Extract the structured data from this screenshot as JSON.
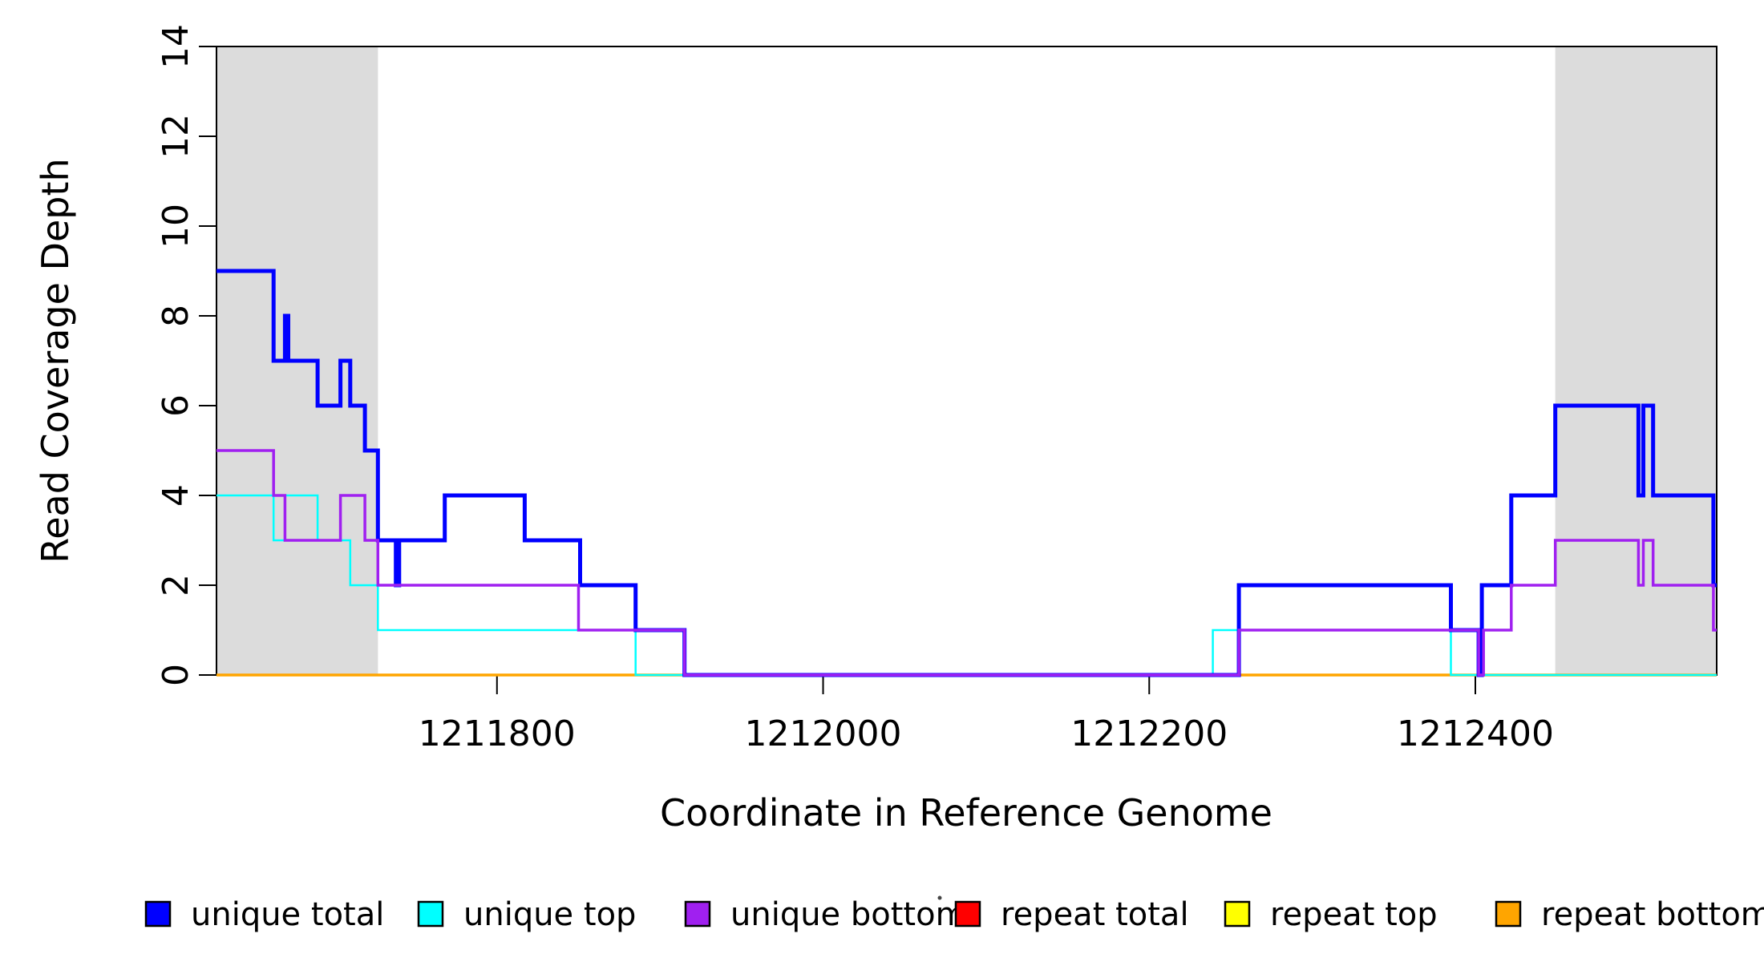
{
  "chart_data": {
    "type": "line",
    "subtype": "step-coverage",
    "title": "",
    "xlabel": "Coordinate in Reference Genome",
    "ylabel": "Read Coverage Depth",
    "x_range": [
      1211628,
      1212548
    ],
    "ylim": [
      0,
      14
    ],
    "grid": false,
    "legend_position": "bottom",
    "x_ticks": [
      {
        "value": 1211800,
        "label": "1211800"
      },
      {
        "value": 1212000,
        "label": "1212000"
      },
      {
        "value": 1212200,
        "label": "1212200"
      },
      {
        "value": 1212400,
        "label": "1212400"
      }
    ],
    "y_ticks": [
      {
        "value": 0,
        "label": "0"
      },
      {
        "value": 2,
        "label": "2"
      },
      {
        "value": 4,
        "label": "4"
      },
      {
        "value": 6,
        "label": "6"
      },
      {
        "value": 8,
        "label": "8"
      },
      {
        "value": 10,
        "label": "10"
      },
      {
        "value": 12,
        "label": "12"
      },
      {
        "value": 14,
        "label": "14"
      }
    ],
    "shaded_regions": [
      {
        "name": "repeat-region-left",
        "x_start": 1211628,
        "x_end": 1211727,
        "color": "#DCDCDC"
      },
      {
        "name": "repeat-region-right",
        "x_start": 1212449,
        "x_end": 1212548,
        "color": "#DCDCDC"
      }
    ],
    "series": [
      {
        "name": "repeat total",
        "color": "#FF0000",
        "width": 3,
        "points": [
          [
            1211628,
            0
          ],
          [
            1212548,
            0
          ]
        ]
      },
      {
        "name": "repeat top",
        "color": "#FFFF00",
        "width": 3,
        "points": [
          [
            1211628,
            0
          ],
          [
            1212548,
            0
          ]
        ]
      },
      {
        "name": "repeat bottom",
        "color": "#FFA500",
        "width": 3.5,
        "points": [
          [
            1211628,
            0
          ],
          [
            1212548,
            0
          ]
        ]
      },
      {
        "name": "unique top",
        "color": "#00FFFF",
        "width": 2.5,
        "points": [
          [
            1211628,
            4
          ],
          [
            1211663,
            3
          ],
          [
            1211670,
            4
          ],
          [
            1211690,
            3
          ],
          [
            1211710,
            2
          ],
          [
            1211727,
            1
          ],
          [
            1211885,
            0
          ],
          [
            1212239,
            1
          ],
          [
            1212385,
            0
          ],
          [
            1212548,
            0
          ]
        ]
      },
      {
        "name": "unique total",
        "color": "#0000FF",
        "width": 5,
        "points": [
          [
            1211628,
            9
          ],
          [
            1211663,
            7
          ],
          [
            1211670,
            8
          ],
          [
            1211672,
            7
          ],
          [
            1211690,
            6
          ],
          [
            1211704,
            7
          ],
          [
            1211710,
            6
          ],
          [
            1211719,
            5
          ],
          [
            1211727,
            3
          ],
          [
            1211738,
            2
          ],
          [
            1211740,
            3
          ],
          [
            1211768,
            4
          ],
          [
            1211817,
            3
          ],
          [
            1211851,
            2
          ],
          [
            1211885,
            1
          ],
          [
            1211915,
            0
          ],
          [
            1212255,
            2
          ],
          [
            1212385,
            1
          ],
          [
            1212402,
            0
          ],
          [
            1212404,
            2
          ],
          [
            1212422,
            4
          ],
          [
            1212449,
            6
          ],
          [
            1212500,
            4
          ],
          [
            1212503,
            6
          ],
          [
            1212509,
            4
          ],
          [
            1212546,
            2
          ],
          [
            1212548,
            2
          ]
        ]
      },
      {
        "name": "unique bottom",
        "color": "#A020F0",
        "width": 3.5,
        "points": [
          [
            1211628,
            5
          ],
          [
            1211663,
            4
          ],
          [
            1211670,
            3
          ],
          [
            1211704,
            4
          ],
          [
            1211719,
            3
          ],
          [
            1211727,
            2
          ],
          [
            1211850,
            1
          ],
          [
            1211915,
            0
          ],
          [
            1212255,
            1
          ],
          [
            1212402,
            0
          ],
          [
            1212405,
            1
          ],
          [
            1212422,
            2
          ],
          [
            1212449,
            3
          ],
          [
            1212500,
            2
          ],
          [
            1212503,
            3
          ],
          [
            1212509,
            2
          ],
          [
            1212546,
            1
          ],
          [
            1212548,
            1
          ]
        ]
      }
    ],
    "legend": [
      {
        "label": "unique total",
        "color": "#0000FF"
      },
      {
        "label": "unique top",
        "color": "#00FFFF"
      },
      {
        "label": "unique bottom",
        "color": "#A020F0"
      },
      {
        "label": "repeat total",
        "color": "#FF0000"
      },
      {
        "label": "repeat top",
        "color": "#FFFF00"
      },
      {
        "label": "repeat bottom",
        "color": "#FFA500"
      }
    ]
  }
}
